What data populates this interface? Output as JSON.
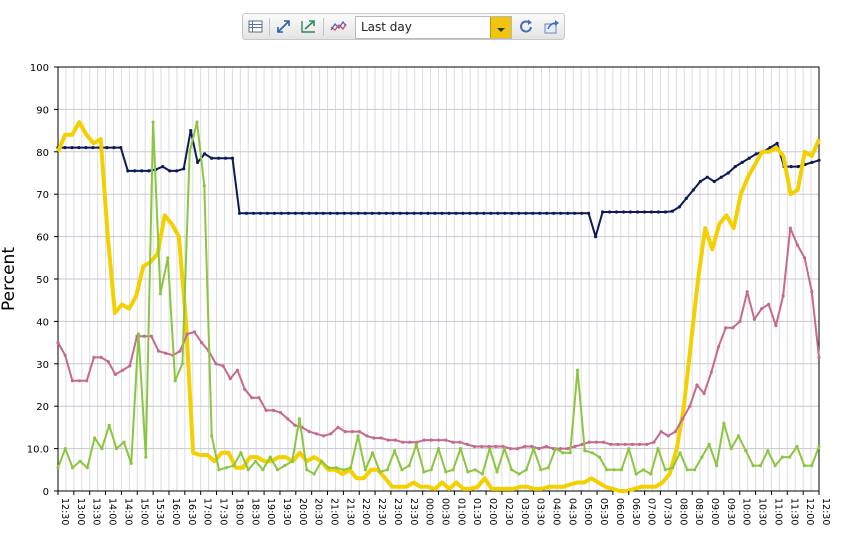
{
  "toolbar": {
    "range_value": "Last day",
    "icons": [
      "table-view-icon",
      "expand-icon",
      "zoom-fit-icon",
      "series-icon",
      "dropdown-arrow-icon",
      "refresh-icon",
      "export-icon"
    ]
  },
  "chart_data": {
    "type": "line",
    "ylabel": "Percent",
    "xlabel": "",
    "ylim": [
      0,
      100
    ],
    "y_ticks": [
      "0",
      "10.0",
      "20",
      "30",
      "40",
      "50",
      "60",
      "70",
      "80",
      "90",
      "100"
    ],
    "grid": true,
    "x_ticks": [
      "12:30",
      "13:00",
      "13:30",
      "14:00",
      "14:30",
      "15:00",
      "15:30",
      "16:00",
      "16:30",
      "17:00",
      "17:30",
      "18:00",
      "18:30",
      "19:00",
      "19:30",
      "20:00",
      "20:30",
      "21:00",
      "21:30",
      "22:00",
      "22:30",
      "23:00",
      "23:30",
      "00:00",
      "00:30",
      "01:00",
      "01:30",
      "02:00",
      "02:30",
      "03:00",
      "03:30",
      "04:00",
      "04:30",
      "05:00",
      "05:30",
      "06:00",
      "06:30",
      "07:00",
      "07:30",
      "08:00",
      "08:30",
      "09:00",
      "09:30",
      "10:00",
      "10:30",
      "11:00",
      "11:30",
      "12:00",
      "12:30"
    ],
    "series": [
      {
        "color": "#0d1a56",
        "width": 2,
        "markers": true,
        "values": [
          81,
          81,
          81,
          81,
          81,
          81,
          81,
          81,
          81,
          81,
          75.5,
          75.5,
          75.5,
          75.5,
          75.8,
          76.5,
          75.5,
          75.5,
          76,
          85,
          77.5,
          79.5,
          78.5,
          78.5,
          78.5,
          78.5,
          65.5,
          65.5,
          65.5,
          65.5,
          65.5,
          65.5,
          65.5,
          65.5,
          65.5,
          65.5,
          65.5,
          65.5,
          65.5,
          65.5,
          65.5,
          65.5,
          65.5,
          65.5,
          65.5,
          65.5,
          65.5,
          65.5,
          65.5,
          65.5,
          65.5,
          65.5,
          65.5,
          65.5,
          65.5,
          65.5,
          65.5,
          65.5,
          65.5,
          65.5,
          65.5,
          65.5,
          65.5,
          65.5,
          65.5,
          65.5,
          65.5,
          65.5,
          65.5,
          65.5,
          65.5,
          65.5,
          65.5,
          65.5,
          65.5,
          65.5,
          65.5,
          60,
          65.8,
          65.8,
          65.8,
          65.8,
          65.8,
          65.8,
          65.8,
          65.8,
          65.8,
          65.8,
          66,
          67,
          69,
          71,
          73,
          74,
          73,
          74,
          75,
          76.5,
          77.5,
          78.5,
          79.5,
          80,
          81,
          82,
          76.5,
          76.5,
          76.5,
          77,
          77.5,
          78
        ]
      },
      {
        "color": "#f5d000",
        "width": 4,
        "markers": false,
        "values": [
          80,
          84,
          84,
          87,
          84,
          82,
          83,
          60,
          42,
          44,
          43,
          46,
          53,
          54,
          56,
          65,
          63,
          60,
          40,
          9,
          8.5,
          8.5,
          7,
          9,
          9,
          5.5,
          5.5,
          8,
          8,
          7,
          7,
          8,
          8,
          7,
          9,
          7,
          8,
          7,
          5,
          5,
          4,
          5,
          3,
          3,
          5,
          5,
          3,
          1,
          1,
          1,
          2,
          1,
          1,
          0.5,
          2,
          0.5,
          2,
          0.5,
          0.5,
          1,
          3,
          0.5,
          0.5,
          0.5,
          0.5,
          1,
          1,
          0.5,
          0.5,
          1,
          1,
          1,
          1.5,
          2,
          2,
          3,
          2,
          1,
          0.5,
          0,
          0,
          0.5,
          1,
          1,
          1,
          2,
          4,
          10,
          20,
          35,
          50,
          62,
          57,
          63,
          65,
          62,
          70,
          74,
          77,
          80,
          80,
          81,
          79,
          70,
          71,
          80,
          79,
          83
        ]
      },
      {
        "color": "#c66a8d",
        "width": 2,
        "markers": true,
        "values": [
          35,
          32,
          26,
          26,
          26,
          31.5,
          31.5,
          30.5,
          27.5,
          28.5,
          29.5,
          36.5,
          36.5,
          36.5,
          33,
          32.5,
          32,
          33,
          37,
          37.5,
          35,
          33,
          30,
          29.5,
          26.5,
          28.5,
          24,
          22,
          22,
          19,
          19,
          18.5,
          17,
          15.5,
          15,
          14,
          13.5,
          13,
          13.5,
          15,
          14,
          14,
          14,
          13,
          12.5,
          12.5,
          12,
          12,
          11.5,
          11.5,
          11.5,
          12,
          12,
          12,
          12,
          11.5,
          11.5,
          11,
          10.5,
          10.5,
          10.5,
          10.5,
          10.5,
          10,
          10,
          10.5,
          10.5,
          10,
          10.5,
          10,
          10,
          10,
          10.5,
          11,
          11.5,
          11.5,
          11.5,
          11,
          11,
          11,
          11,
          11,
          11,
          11.5,
          14,
          13,
          14,
          17,
          20,
          25,
          23,
          28,
          34,
          38.5,
          38.5,
          40,
          47,
          40.5,
          43,
          44,
          39,
          46,
          62,
          58,
          55,
          47,
          31.5
        ]
      },
      {
        "color": "#8cc63f",
        "width": 2,
        "markers": true,
        "values": [
          5.5,
          10,
          5.5,
          7,
          5.5,
          12.5,
          10,
          15.5,
          10,
          11.5,
          6.5,
          37,
          8,
          87,
          46.5,
          55,
          26,
          30,
          80,
          87,
          72,
          13,
          5,
          5.5,
          6,
          9,
          5,
          7,
          5,
          8,
          5,
          6,
          7,
          17,
          5,
          4,
          7,
          5.5,
          5.5,
          5,
          5.5,
          13,
          5,
          9,
          4.5,
          5,
          9.5,
          5,
          6,
          11,
          4.5,
          5,
          10,
          4.5,
          5,
          10,
          4.5,
          5,
          4,
          10,
          4.5,
          10,
          5,
          4,
          5,
          10,
          5,
          5.5,
          10,
          9,
          9,
          28.5,
          9.5,
          9,
          8,
          5,
          5,
          5,
          10,
          4,
          5,
          4,
          10,
          5,
          5.5,
          9,
          5,
          5,
          8,
          11,
          6,
          16,
          10,
          13,
          9.5,
          6,
          6,
          9.5,
          6,
          8,
          8,
          10.5,
          6,
          6,
          10.5
        ]
      }
    ]
  }
}
